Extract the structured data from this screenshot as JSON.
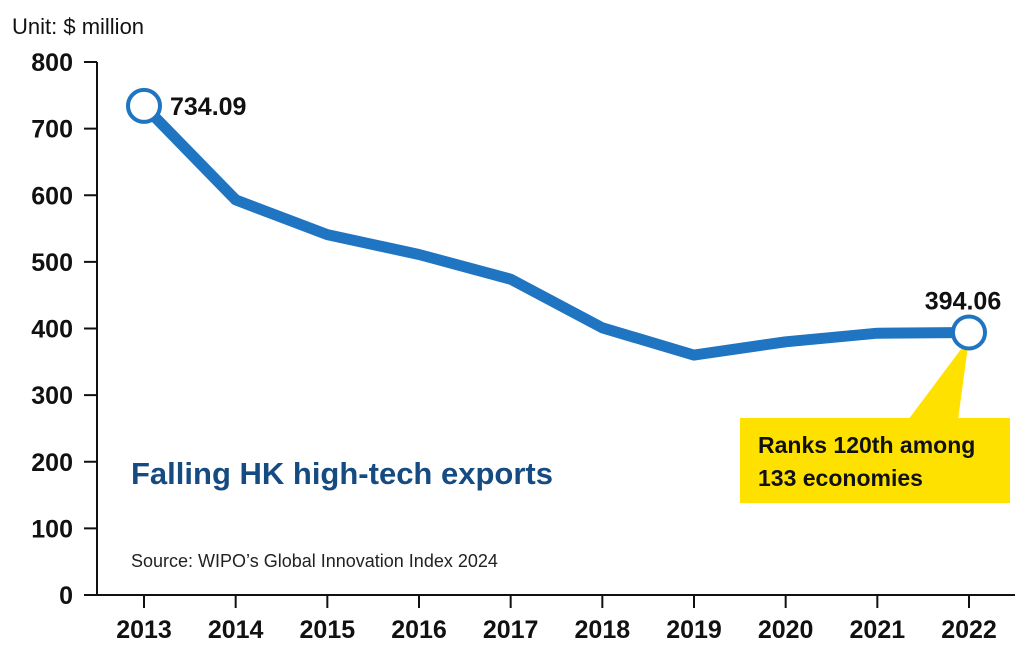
{
  "unit_label": "Unit: $ million",
  "title": "Falling HK high-tech exports",
  "source": "Source: WIPO’s Global Innovation Index 2024",
  "callout": {
    "line1": "Ranks 120th among",
    "line2": "133 economies"
  },
  "colors": {
    "line": "#1f75c1",
    "title": "#154b80",
    "callout_bg": "#ffe100",
    "axis": "#111111",
    "marker_fill": "#ffffff"
  },
  "chart_data": {
    "type": "line",
    "title": "Falling HK high-tech exports",
    "xlabel": "",
    "ylabel": "Unit: $ million",
    "categories": [
      "2013",
      "2014",
      "2015",
      "2016",
      "2017",
      "2018",
      "2019",
      "2020",
      "2021",
      "2022"
    ],
    "series": [
      {
        "values": [
          734.09,
          593,
          541,
          511,
          474,
          401,
          360,
          380,
          393,
          394.06
        ]
      }
    ],
    "ylim": [
      0,
      800
    ],
    "yticks": [
      0,
      100,
      200,
      300,
      400,
      500,
      600,
      700,
      800
    ],
    "data_labels": [
      {
        "index": 0,
        "text": "734.09"
      },
      {
        "index": 9,
        "text": "394.06"
      }
    ],
    "highlighted_points": [
      0,
      9
    ],
    "grid": false,
    "legend": "none"
  }
}
